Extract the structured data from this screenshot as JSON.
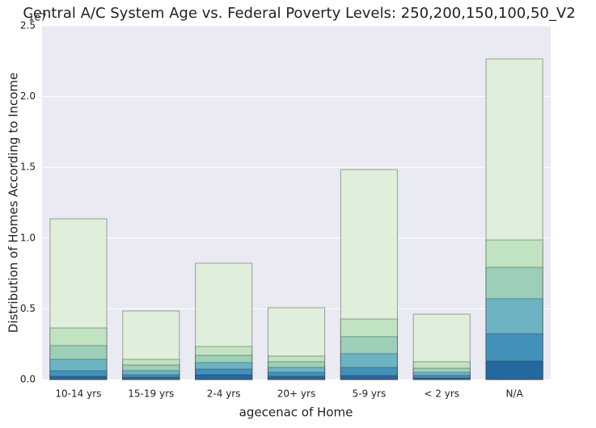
{
  "chart_data": {
    "type": "bar",
    "overlay": true,
    "title": "Central A/C System Age vs. Federal Poverty Levels: 250,200,150,100,50_V2",
    "x_label": "agecenac of Home",
    "y_label": "Distribution of Homes According to Income",
    "y_offset_label": "1e7",
    "categories": [
      "10-14 yrs",
      "15-19 yrs",
      "2-4 yrs",
      "20+ yrs",
      "5-9 yrs",
      "< 2 yrs",
      "N/A"
    ],
    "series": [
      {
        "color": "#e0efdc",
        "values": [
          1.136,
          0.485,
          0.822,
          0.508,
          1.484,
          0.462,
          2.266
        ]
      },
      {
        "color": "#c2e3c1",
        "values": [
          0.365,
          0.143,
          0.234,
          0.166,
          0.428,
          0.126,
          0.987
        ]
      },
      {
        "color": "#9dcfb8",
        "values": [
          0.24,
          0.103,
          0.171,
          0.126,
          0.303,
          0.08,
          0.793
        ]
      },
      {
        "color": "#6cb4c2",
        "values": [
          0.143,
          0.063,
          0.12,
          0.086,
          0.183,
          0.051,
          0.571
        ]
      },
      {
        "color": "#4391b9",
        "values": [
          0.063,
          0.034,
          0.074,
          0.051,
          0.086,
          0.029,
          0.325
        ]
      },
      {
        "color": "#2468a0",
        "values": [
          0.023,
          0.017,
          0.034,
          0.023,
          0.029,
          0.011,
          0.131
        ]
      }
    ],
    "ylim": [
      0,
      2.5
    ],
    "yticks": [
      {
        "value": 0,
        "label": "0.0"
      },
      0.5,
      {
        "value": 1,
        "label": "1.0"
      },
      1.5,
      {
        "value": 2,
        "label": "2.0"
      },
      2.5
    ],
    "grid": true,
    "background": "#eaeaf2"
  }
}
